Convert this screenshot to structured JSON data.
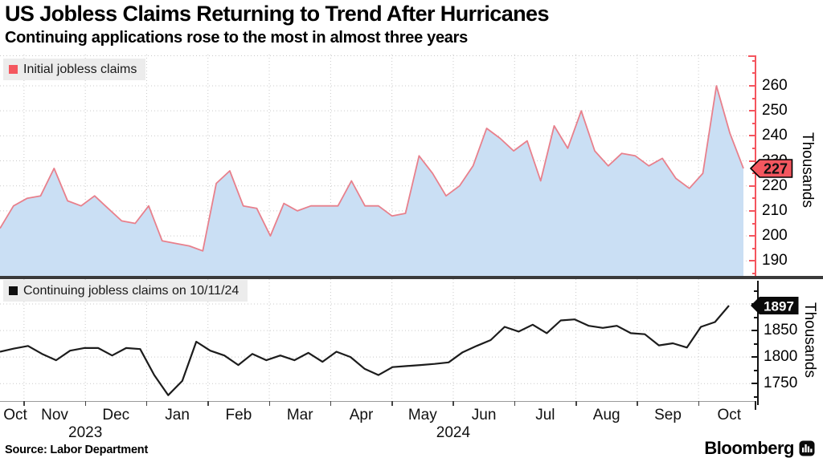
{
  "title": "US Jobless Claims Returning to Trend After Hurricanes",
  "subtitle": "Continuing applications rose to the most in almost three years",
  "source": "Source: Labor Department",
  "brand": {
    "name": "Bloomberg"
  },
  "colors": {
    "accent_red": "#f4555e",
    "badge_red": "#f4575f",
    "line_pink": "#e8808c",
    "area_blue": "#cadff4",
    "line_black": "#1c1c1c",
    "grid": "#c9c9c9",
    "divider": "#3a3a3a",
    "legend_bg": "#ececec"
  },
  "top_panel": {
    "legend": "Initial jobless claims",
    "unit_label": "Thousands",
    "last_value_label": "227"
  },
  "bottom_panel": {
    "legend": "Continuing jobless claims on 10/11/24",
    "unit_label": "Thousands",
    "last_value_label": "1897"
  },
  "x_axis": {
    "months": [
      "Oct",
      "Nov",
      "Dec",
      "Jan",
      "Feb",
      "Mar",
      "Apr",
      "May",
      "Jun",
      "Jul",
      "Aug",
      "Sep",
      "Oct"
    ],
    "years": [
      {
        "label": "2023",
        "between_months": [
          1,
          2
        ]
      },
      {
        "label": "2024",
        "between_months": [
          7,
          8
        ]
      }
    ]
  },
  "chart_data": [
    {
      "type": "area",
      "name": "Initial jobless claims",
      "unit": "thousands",
      "frequency": "weekly",
      "x_range": [
        "Oct 2023",
        "Oct 2024"
      ],
      "ylim": [
        184,
        272.5
      ],
      "yticks": [
        190,
        200,
        210,
        220,
        230,
        240,
        250,
        260
      ],
      "minor_tick_step": 5,
      "grid": true,
      "legend_position": "top-left",
      "last_label": "227",
      "values": [
        203,
        212,
        215,
        216,
        227,
        214,
        212,
        216,
        211,
        206,
        205,
        212,
        198,
        197,
        196,
        194,
        221,
        226,
        212,
        211,
        200,
        213,
        210,
        212,
        212,
        212,
        222,
        212,
        212,
        208,
        209,
        232,
        225,
        216,
        220,
        228,
        243,
        239,
        234,
        238,
        222,
        244,
        235,
        250,
        234,
        228,
        233,
        232,
        228,
        231,
        223,
        219,
        225,
        260,
        241,
        227
      ]
    },
    {
      "type": "line",
      "name": "Continuing jobless claims on 10/11/24",
      "unit": "thousands",
      "frequency": "weekly",
      "x_range": [
        "Oct 2023",
        "Oct 2024"
      ],
      "ylim": [
        1717,
        1947
      ],
      "yticks": [
        1750,
        1800,
        1850
      ],
      "grid_values": [
        1750,
        1800,
        1850,
        1900
      ],
      "minor_tick_step": 25,
      "grid": true,
      "legend_position": "top-left",
      "last_label": "1897",
      "values": [
        1810,
        1816,
        1821,
        1806,
        1794,
        1812,
        1817,
        1817,
        1803,
        1817,
        1815,
        1766,
        1728,
        1755,
        1829,
        1812,
        1803,
        1785,
        1806,
        1794,
        1803,
        1794,
        1808,
        1791,
        1810,
        1800,
        1778,
        1766,
        1781,
        1783,
        1785,
        1787,
        1790,
        1809,
        1821,
        1832,
        1857,
        1848,
        1861,
        1845,
        1869,
        1871,
        1859,
        1855,
        1859,
        1845,
        1843,
        1822,
        1826,
        1818,
        1857,
        1866,
        1897
      ]
    }
  ]
}
